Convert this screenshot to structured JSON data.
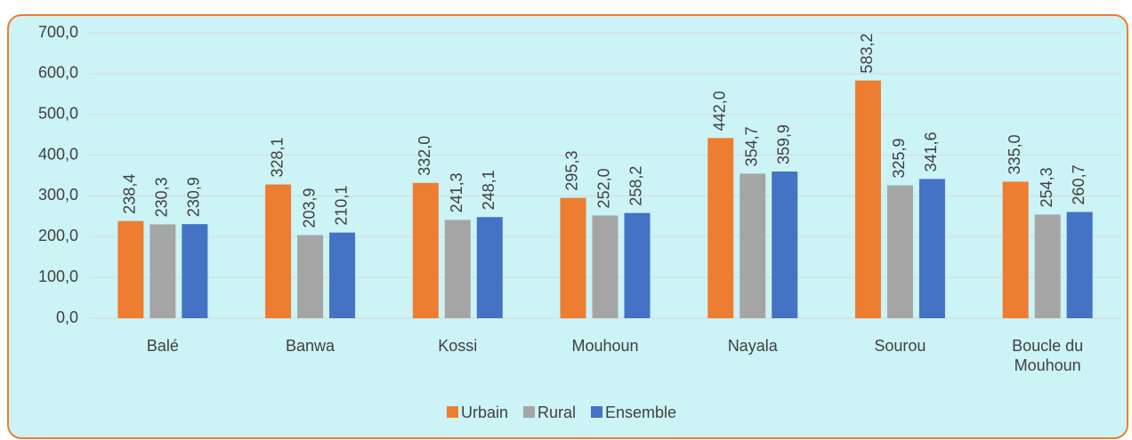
{
  "chart_data": {
    "type": "bar",
    "categories": [
      "Balé",
      "Banwa",
      "Kossi",
      "Mouhoun",
      "Nayala",
      "Sourou",
      "Boucle du Mouhoun"
    ],
    "series": [
      {
        "name": "Urbain",
        "color": "#ed7d31",
        "values": [
          238.4,
          328.1,
          332.0,
          295.3,
          442.0,
          583.2,
          335.0
        ],
        "value_labels": [
          "238,4",
          "328,1",
          "332,0",
          "295,3",
          "442,0",
          "583,2",
          "335,0"
        ]
      },
      {
        "name": "Rural",
        "color": "#a5a5a5",
        "values": [
          230.3,
          203.9,
          241.3,
          252.0,
          354.7,
          325.9,
          254.3
        ],
        "value_labels": [
          "230,3",
          "203,9",
          "241,3",
          "252,0",
          "354,7",
          "325,9",
          "254,3"
        ]
      },
      {
        "name": "Ensemble",
        "color": "#4472c4",
        "values": [
          230.9,
          210.1,
          248.1,
          258.2,
          359.9,
          341.6,
          260.7
        ],
        "value_labels": [
          "230,9",
          "210,1",
          "248,1",
          "258,2",
          "359,9",
          "341,6",
          "260,7"
        ]
      }
    ],
    "ylim": [
      0,
      700
    ],
    "yticks": [
      {
        "value": 0,
        "label": "0,0"
      },
      {
        "value": 100,
        "label": "100,0"
      },
      {
        "value": 200,
        "label": "200,0"
      },
      {
        "value": 300,
        "label": "300,0"
      },
      {
        "value": 400,
        "label": "400,0"
      },
      {
        "value": 500,
        "label": "500,0"
      },
      {
        "value": 600,
        "label": "600,0"
      },
      {
        "value": 700,
        "label": "700,0"
      }
    ],
    "grid": true,
    "legend": "bottom"
  }
}
